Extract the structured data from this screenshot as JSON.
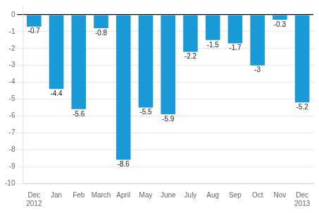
{
  "chart_data": {
    "type": "bar",
    "categories": [
      "Dec",
      "Jan",
      "Feb",
      "March",
      "April",
      "May",
      "June",
      "July",
      "Aug",
      "Sep",
      "Oct",
      "Nov",
      "Dec"
    ],
    "values": [
      -0.7,
      -4.4,
      -5.6,
      -0.8,
      -8.6,
      -5.5,
      -5.9,
      -2.2,
      -1.5,
      -1.7,
      -3.0,
      -0.3,
      -5.2
    ],
    "color": "#1a9ad6",
    "ylim": [
      -10,
      0.5
    ],
    "yticks": [
      0,
      -1,
      -2,
      -3,
      -4,
      -5,
      -6,
      -7,
      -8,
      -9,
      -10
    ],
    "grid": true,
    "data_labels": true,
    "annotations": [
      {
        "text": "2012",
        "x": 0
      },
      {
        "text": "2013",
        "x": 12
      }
    ]
  }
}
